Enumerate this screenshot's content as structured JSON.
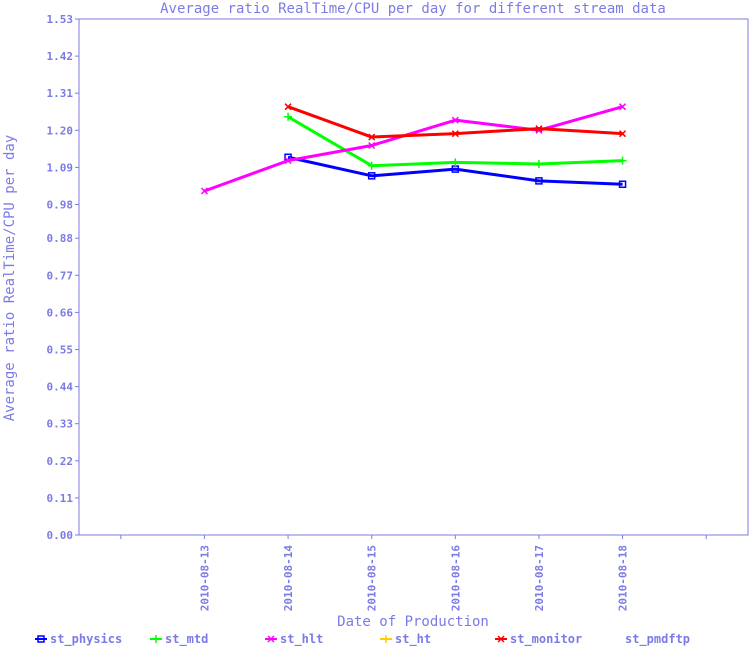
{
  "chart_data": {
    "type": "line",
    "title": "Average ratio RealTime/CPU per day for different stream data",
    "xlabel": "Date of Production",
    "ylabel": "Average ratio RealTime/CPU per day",
    "x": [
      "",
      "2010-08-13",
      "2010-08-14",
      "2010-08-15",
      "2010-08-16",
      "2010-08-17",
      "2010-08-18",
      ""
    ],
    "x_ticks": [
      "2010-08-13",
      "2010-08-14",
      "2010-08-15",
      "2010-08-16",
      "2010-08-17",
      "2010-08-18"
    ],
    "y_ticks": [
      "0.00",
      "0.11",
      "0.22",
      "0.33",
      "0.44",
      "0.55",
      "0.66",
      "0.77",
      "0.88",
      "0.98",
      "1.09",
      "1.20",
      "1.31",
      "1.42",
      "1.53"
    ],
    "ylim": [
      0,
      1.53
    ],
    "grid": false,
    "legend_position": "bottom",
    "series": [
      {
        "name": "st_physics",
        "color": "#0000ff",
        "marker": "square",
        "values": [
          null,
          null,
          1.12,
          1.065,
          1.085,
          1.05,
          1.04,
          null
        ]
      },
      {
        "name": "st_mtd",
        "color": "#00ff00",
        "marker": "plus",
        "values": [
          null,
          null,
          1.24,
          1.095,
          1.105,
          1.1,
          1.11,
          null
        ]
      },
      {
        "name": "st_hlt",
        "color": "#ff00ff",
        "marker": "x",
        "values": [
          null,
          1.02,
          1.11,
          1.155,
          1.23,
          1.2,
          1.27,
          null
        ]
      },
      {
        "name": "st_ht",
        "color": "#ffcc00",
        "marker": "plus",
        "values": [
          null,
          null,
          null,
          null,
          null,
          null,
          null,
          null
        ]
      },
      {
        "name": "st_monitor",
        "color": "#ff0000",
        "marker": "x",
        "values": [
          null,
          null,
          1.27,
          1.18,
          1.19,
          1.205,
          1.19,
          null
        ]
      },
      {
        "name": "st_pmdftp",
        "color": "#ffffff",
        "marker": "none",
        "values": [
          null,
          null,
          null,
          null,
          null,
          null,
          null,
          null
        ]
      }
    ]
  }
}
